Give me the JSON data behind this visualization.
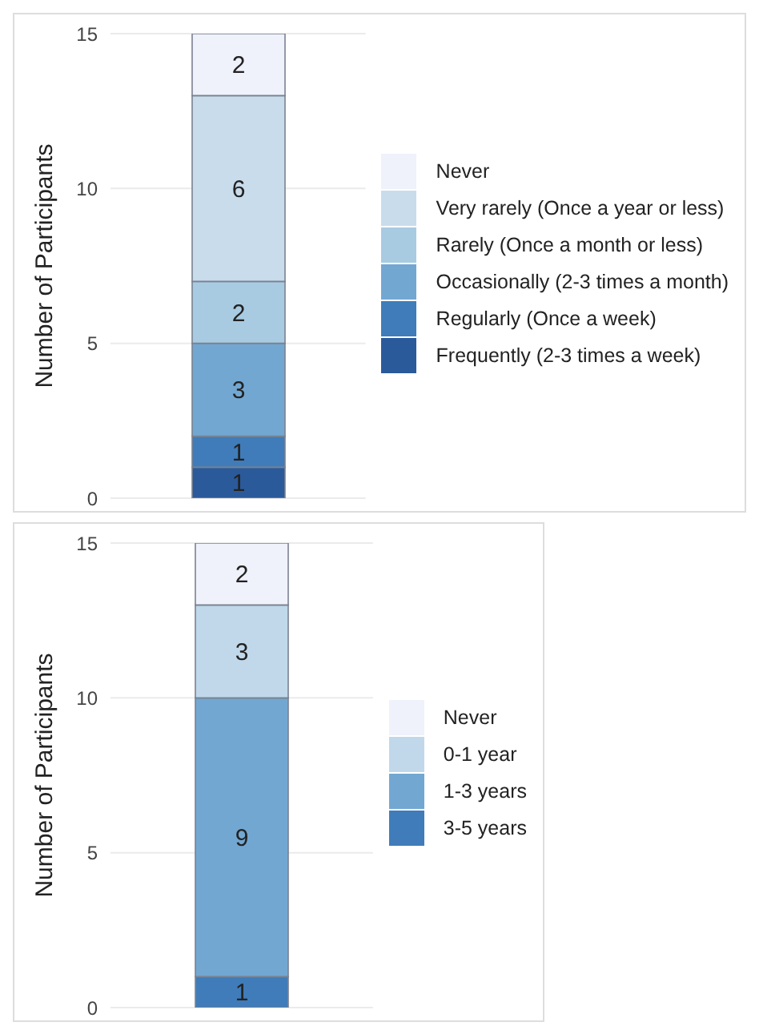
{
  "chart_data": [
    {
      "type": "bar",
      "stacked": true,
      "categories": [
        null
      ],
      "ylabel": "Number of Participants",
      "ylim": [
        0,
        15
      ],
      "yticks": [
        0,
        5,
        10,
        15
      ],
      "grid": "y",
      "legend": "right",
      "data_labels": true,
      "series": [
        {
          "name": "Frequently (2-3 times a week)",
          "color": "#2b5a9b",
          "values": [
            1
          ]
        },
        {
          "name": "Regularly (Once a week)",
          "color": "#3f7cb9",
          "values": [
            1
          ]
        },
        {
          "name": "Occasionally (2-3 times a month)",
          "color": "#72a7d2",
          "values": [
            3
          ]
        },
        {
          "name": "Rarely (Once a month or less)",
          "color": "#a8cbe2",
          "values": [
            2
          ]
        },
        {
          "name": "Very rarely (Once a year or less)",
          "color": "#c9dcec",
          "values": [
            6
          ]
        },
        {
          "name": "Never",
          "color": "#eff1fb",
          "values": [
            2
          ]
        }
      ]
    },
    {
      "type": "bar",
      "stacked": true,
      "categories": [
        null
      ],
      "ylabel": "Number of Participants",
      "ylim": [
        0,
        15
      ],
      "yticks": [
        0,
        5,
        10,
        15
      ],
      "grid": "y",
      "legend": "right",
      "data_labels": true,
      "series": [
        {
          "name": "3-5 years",
          "color": "#3f7cb9",
          "values": [
            1
          ]
        },
        {
          "name": "1-3 years",
          "color": "#72a7d2",
          "values": [
            9
          ]
        },
        {
          "name": "0-1 year",
          "color": "#c0d8ea",
          "values": [
            3
          ]
        },
        {
          "name": "Never",
          "color": "#eff1fb",
          "values": [
            2
          ]
        }
      ]
    }
  ]
}
